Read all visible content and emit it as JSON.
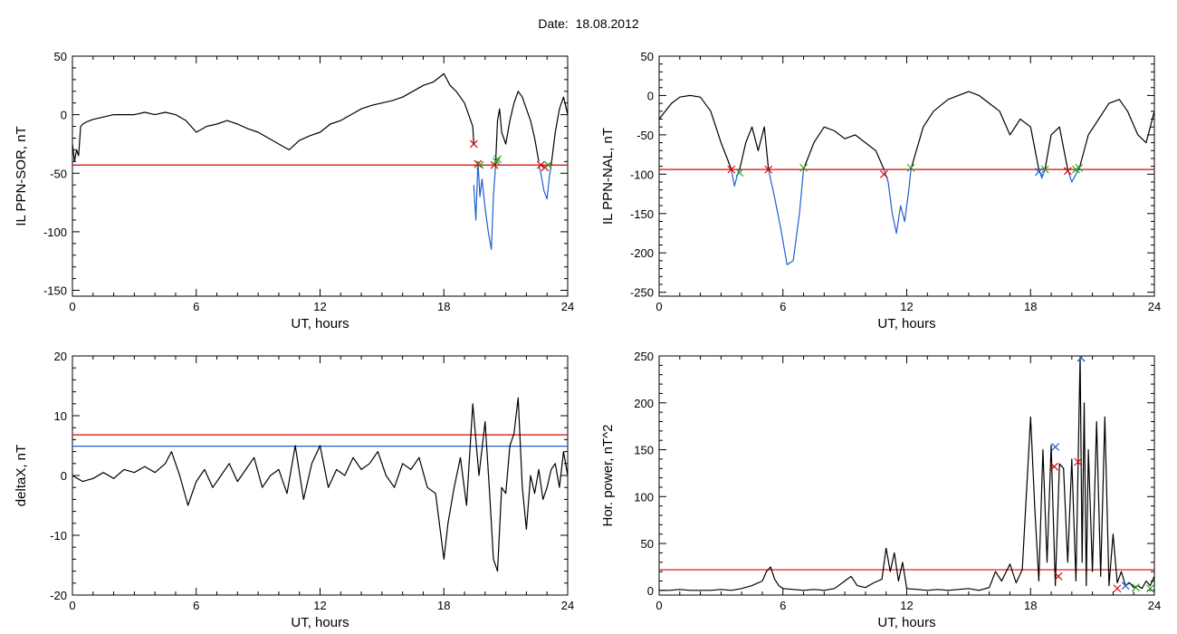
{
  "page": {
    "title": "Date:  18.08.2012"
  },
  "chart_data": [
    {
      "id": "ppn-sor",
      "type": "line",
      "title": "",
      "xlabel": "UT, hours",
      "ylabel": "IL PPN-SOR, nT",
      "xlim": [
        0,
        24
      ],
      "ylim": [
        -155,
        50
      ],
      "xticks": [
        0,
        6,
        12,
        18,
        24
      ],
      "yticks": [
        50,
        0,
        -50,
        -100,
        -150
      ],
      "grid": false,
      "legend": "none",
      "colors": {
        "line": "#000000",
        "highlight": "#1f5fd0",
        "threshold": "#e00000"
      },
      "thresholds": [
        {
          "y": -43,
          "color": "#e00000"
        }
      ],
      "series": [
        {
          "color": "#000000",
          "x": [
            0,
            0.1,
            0.2,
            0.3,
            0.4,
            0.5,
            0.7,
            1,
            1.5,
            2,
            2.5,
            3,
            3.5,
            4,
            4.5,
            5,
            5.5,
            6,
            6.5,
            7,
            7.5,
            8,
            8.5,
            9,
            9.5,
            10,
            10.5,
            11,
            11.5,
            12,
            12.5,
            13,
            13.5,
            14,
            14.5,
            15,
            15.5,
            16,
            16.5,
            17,
            17.5,
            18,
            18.3,
            18.6,
            19,
            19.2,
            19.4,
            19.45
          ],
          "y": [
            -25,
            -40,
            -30,
            -35,
            -10,
            -8,
            -6,
            -4,
            -2,
            0,
            0,
            0,
            2,
            0,
            2,
            0,
            -5,
            -15,
            -10,
            -8,
            -5,
            -8,
            -12,
            -15,
            -20,
            -25,
            -30,
            -22,
            -18,
            -15,
            -8,
            -5,
            0,
            5,
            8,
            10,
            12,
            15,
            20,
            25,
            28,
            35,
            25,
            20,
            10,
            0,
            -10,
            -25
          ]
        },
        {
          "color": "#1f5fd0",
          "x": [
            19.45,
            19.55,
            19.65,
            19.75,
            19.85,
            20,
            20.15,
            20.3,
            20.4,
            20.5
          ],
          "y": [
            -60,
            -90,
            -40,
            -70,
            -55,
            -80,
            -100,
            -115,
            -70,
            -45
          ]
        },
        {
          "color": "#000000",
          "x": [
            20.5,
            20.6,
            20.7,
            20.8,
            21,
            21.2,
            21.4,
            21.6,
            21.8,
            22,
            22.2,
            22.4,
            22.6
          ],
          "y": [
            -45,
            -5,
            5,
            -15,
            -25,
            -5,
            10,
            20,
            15,
            5,
            -5,
            -20,
            -40
          ]
        },
        {
          "color": "#1f5fd0",
          "x": [
            22.6,
            22.7,
            22.85,
            23,
            23.1,
            23.2
          ],
          "y": [
            -43,
            -50,
            -65,
            -72,
            -55,
            -43
          ]
        },
        {
          "color": "#000000",
          "x": [
            23.2,
            23.4,
            23.6,
            23.8,
            24
          ],
          "y": [
            -43,
            -15,
            5,
            15,
            0
          ]
        }
      ],
      "markers": [
        {
          "x": 19.45,
          "y": -25,
          "color": "#e00000"
        },
        {
          "x": 19.65,
          "y": -42,
          "color": "#e00000"
        },
        {
          "x": 19.75,
          "y": -43,
          "color": "#2aa02a"
        },
        {
          "x": 20.45,
          "y": -43,
          "color": "#e00000"
        },
        {
          "x": 20.55,
          "y": -40,
          "color": "#2aa02a"
        },
        {
          "x": 20.6,
          "y": -38,
          "color": "#2aa02a"
        },
        {
          "x": 22.7,
          "y": -43,
          "color": "#e00000"
        },
        {
          "x": 22.9,
          "y": -45,
          "color": "#e00000"
        },
        {
          "x": 23.05,
          "y": -43,
          "color": "#2aa02a"
        }
      ]
    },
    {
      "id": "ppn-nal",
      "type": "line",
      "title": "",
      "xlabel": "UT, hours",
      "ylabel": "IL PPN-NAL, nT",
      "xlim": [
        0,
        24
      ],
      "ylim": [
        -255,
        50
      ],
      "xticks": [
        0,
        6,
        12,
        18,
        24
      ],
      "yticks": [
        50,
        0,
        -50,
        -100,
        -150,
        -200,
        -250
      ],
      "grid": false,
      "legend": "none",
      "colors": {
        "line": "#000000",
        "highlight": "#1f5fd0",
        "threshold": "#e00000"
      },
      "thresholds": [
        {
          "y": -94,
          "color": "#e00000"
        }
      ],
      "series": [
        {
          "color": "#000000",
          "x": [
            0,
            0.3,
            0.6,
            1,
            1.5,
            2,
            2.5,
            3,
            3.3,
            3.5
          ],
          "y": [
            -30,
            -20,
            -10,
            -2,
            0,
            -2,
            -20,
            -60,
            -80,
            -94
          ]
        },
        {
          "color": "#1f5fd0",
          "x": [
            3.5,
            3.65,
            3.8,
            3.9
          ],
          "y": [
            -94,
            -115,
            -100,
            -94
          ]
        },
        {
          "color": "#000000",
          "x": [
            3.9,
            4.2,
            4.5,
            4.8,
            5.1,
            5.3
          ],
          "y": [
            -94,
            -60,
            -40,
            -70,
            -40,
            -94
          ]
        },
        {
          "color": "#1f5fd0",
          "x": [
            5.3,
            5.6,
            5.9,
            6.2,
            6.5,
            6.8,
            7
          ],
          "y": [
            -94,
            -130,
            -170,
            -215,
            -210,
            -150,
            -94
          ]
        },
        {
          "color": "#000000",
          "x": [
            7,
            7.5,
            8,
            8.5,
            9,
            9.5,
            10,
            10.5,
            10.9
          ],
          "y": [
            -94,
            -60,
            -40,
            -45,
            -55,
            -50,
            -60,
            -70,
            -94
          ]
        },
        {
          "color": "#1f5fd0",
          "x": [
            10.9,
            11.1,
            11.3,
            11.5,
            11.7,
            11.9,
            12.1,
            12.2
          ],
          "y": [
            -94,
            -110,
            -150,
            -175,
            -140,
            -160,
            -120,
            -94
          ]
        },
        {
          "color": "#000000",
          "x": [
            12.2,
            12.8,
            13.3,
            14,
            14.5,
            15,
            15.5,
            16,
            16.5,
            17,
            17.5,
            18,
            18.4
          ],
          "y": [
            -94,
            -40,
            -20,
            -5,
            0,
            5,
            0,
            -10,
            -20,
            -50,
            -30,
            -40,
            -94
          ]
        },
        {
          "color": "#1f5fd0",
          "x": [
            18.4,
            18.55,
            18.7
          ],
          "y": [
            -94,
            -105,
            -94
          ]
        },
        {
          "color": "#000000",
          "x": [
            18.7,
            19,
            19.4,
            19.8
          ],
          "y": [
            -94,
            -50,
            -40,
            -94
          ]
        },
        {
          "color": "#1f5fd0",
          "x": [
            19.8,
            20,
            20.2,
            20.35
          ],
          "y": [
            -94,
            -110,
            -100,
            -94
          ]
        },
        {
          "color": "#000000",
          "x": [
            20.35,
            20.8,
            21.3,
            21.8,
            22.3,
            22.7,
            23.2,
            23.6,
            24
          ],
          "y": [
            -94,
            -50,
            -30,
            -10,
            -5,
            -20,
            -50,
            -60,
            -20
          ]
        }
      ],
      "markers": [
        {
          "x": 3.5,
          "y": -94,
          "color": "#e00000"
        },
        {
          "x": 3.9,
          "y": -98,
          "color": "#2aa02a"
        },
        {
          "x": 5.3,
          "y": -94,
          "color": "#e00000"
        },
        {
          "x": 7,
          "y": -92,
          "color": "#2aa02a"
        },
        {
          "x": 10.9,
          "y": -100,
          "color": "#e00000"
        },
        {
          "x": 12.2,
          "y": -92,
          "color": "#2aa02a"
        },
        {
          "x": 18.4,
          "y": -97,
          "color": "#1f5fd0"
        },
        {
          "x": 18.7,
          "y": -94,
          "color": "#2aa02a"
        },
        {
          "x": 19.8,
          "y": -96,
          "color": "#e00000"
        },
        {
          "x": 20.2,
          "y": -94,
          "color": "#2aa02a"
        },
        {
          "x": 20.35,
          "y": -92,
          "color": "#2aa02a"
        }
      ]
    },
    {
      "id": "deltax",
      "type": "line",
      "title": "",
      "xlabel": "UT, hours",
      "ylabel": "deltaX, nT",
      "xlim": [
        0,
        24
      ],
      "ylim": [
        -20,
        20
      ],
      "xticks": [
        0,
        6,
        12,
        18,
        24
      ],
      "yticks": [
        20,
        10,
        0,
        -10,
        -20
      ],
      "grid": false,
      "legend": "none",
      "colors": {
        "line": "#000000",
        "threshold_upper": "#e00000",
        "threshold_lower": "#1f5fd0"
      },
      "thresholds": [
        {
          "y": 6.8,
          "color": "#e00000"
        },
        {
          "y": 4.9,
          "color": "#1f5fd0"
        }
      ],
      "series": [
        {
          "color": "#000000",
          "x": [
            0,
            0.5,
            1,
            1.5,
            2,
            2.5,
            3,
            3.5,
            4,
            4.5,
            4.8,
            5.2,
            5.6,
            6,
            6.4,
            6.8,
            7.2,
            7.6,
            8,
            8.4,
            8.8,
            9.2,
            9.6,
            10,
            10.4,
            10.8,
            11.2,
            11.6,
            12,
            12.4,
            12.8,
            13.2,
            13.6,
            14,
            14.4,
            14.8,
            15.2,
            15.6,
            16,
            16.4,
            16.8,
            17.2,
            17.6,
            18,
            18.2,
            18.5,
            18.8,
            19.1,
            19.4,
            19.7,
            20,
            20.2,
            20.4,
            20.6,
            20.8,
            21,
            21.2,
            21.4,
            21.6,
            21.8,
            22,
            22.2,
            22.4,
            22.6,
            22.8,
            23,
            23.2,
            23.4,
            23.6,
            23.8,
            24
          ],
          "y": [
            0,
            -1,
            -0.5,
            0.5,
            -0.5,
            1,
            0.5,
            1.5,
            0.5,
            2,
            4,
            0,
            -5,
            -1,
            1,
            -2,
            0,
            2,
            -1,
            1,
            3,
            -2,
            0,
            1,
            -3,
            5,
            -4,
            2,
            5,
            -2,
            1,
            0,
            3,
            1,
            2,
            4,
            0,
            -2,
            2,
            1,
            3,
            -2,
            -3,
            -14,
            -8,
            -2,
            3,
            -5,
            12,
            0,
            9,
            -2,
            -14,
            -16,
            -2,
            -3,
            5,
            7,
            13,
            -2,
            -9,
            0,
            -3,
            1,
            -4,
            -2,
            1,
            2,
            -2,
            4,
            0
          ]
        }
      ],
      "markers": []
    },
    {
      "id": "hor-power",
      "type": "line",
      "title": "",
      "xlabel": "UT, hours",
      "ylabel": "Hor. power, nT^2",
      "xlim": [
        0,
        24
      ],
      "ylim": [
        -5,
        250
      ],
      "xticks": [
        0,
        6,
        12,
        18,
        24
      ],
      "yticks": [
        250,
        200,
        150,
        100,
        50,
        0
      ],
      "grid": false,
      "legend": "none",
      "colors": {
        "line": "#000000",
        "threshold": "#e00000"
      },
      "thresholds": [
        {
          "y": 22,
          "color": "#e00000"
        }
      ],
      "series": [
        {
          "color": "#000000",
          "x": [
            0,
            0.5,
            1,
            1.5,
            2,
            2.5,
            3,
            3.5,
            4,
            4.5,
            5,
            5.2,
            5.4,
            5.6,
            5.8,
            6,
            6.5,
            7,
            7.5,
            8,
            8.5,
            9,
            9.3,
            9.6,
            10,
            10.4,
            10.8,
            11,
            11.2,
            11.4,
            11.6,
            11.8,
            12,
            12.5,
            13,
            13.5,
            14,
            14.5,
            15,
            15.5,
            16,
            16.3,
            16.6,
            17,
            17.3,
            17.6,
            18,
            18.2,
            18.4,
            18.6,
            18.8,
            19,
            19.2,
            19.4,
            19.6,
            19.8,
            20,
            20.2,
            20.4,
            20.5,
            20.6,
            20.7,
            20.8,
            21,
            21.2,
            21.4,
            21.6,
            21.8,
            22,
            22.2,
            22.4,
            22.6,
            22.8,
            23,
            23.2,
            23.4,
            23.6,
            23.8,
            24
          ],
          "y": [
            0,
            0,
            1,
            0,
            0,
            0,
            1,
            0,
            2,
            5,
            10,
            20,
            25,
            12,
            5,
            2,
            1,
            0,
            1,
            0,
            2,
            10,
            15,
            5,
            3,
            8,
            12,
            45,
            20,
            40,
            10,
            30,
            2,
            1,
            0,
            1,
            0,
            1,
            2,
            0,
            3,
            20,
            10,
            28,
            8,
            22,
            185,
            90,
            10,
            150,
            30,
            155,
            5,
            135,
            130,
            30,
            140,
            10,
            250,
            30,
            200,
            5,
            150,
            20,
            180,
            15,
            185,
            5,
            60,
            8,
            20,
            5,
            8,
            3,
            5,
            2,
            10,
            5,
            15
          ]
        }
      ],
      "markers": [
        {
          "x": 19.2,
          "y": 153,
          "color": "#1f5fd0"
        },
        {
          "x": 19.15,
          "y": 132,
          "color": "#e00000"
        },
        {
          "x": 19.35,
          "y": 15,
          "color": "#e00000"
        },
        {
          "x": 20.3,
          "y": 137,
          "color": "#e00000"
        },
        {
          "x": 20.45,
          "y": 248,
          "color": "#2aa02a"
        },
        {
          "x": 20.45,
          "y": 248,
          "color": "#1f5fd0"
        },
        {
          "x": 22.2,
          "y": 2,
          "color": "#e00000"
        },
        {
          "x": 22.6,
          "y": 5,
          "color": "#1f5fd0"
        },
        {
          "x": 23.1,
          "y": 3,
          "color": "#2aa02a"
        },
        {
          "x": 23.8,
          "y": 2,
          "color": "#2aa02a"
        }
      ]
    }
  ]
}
